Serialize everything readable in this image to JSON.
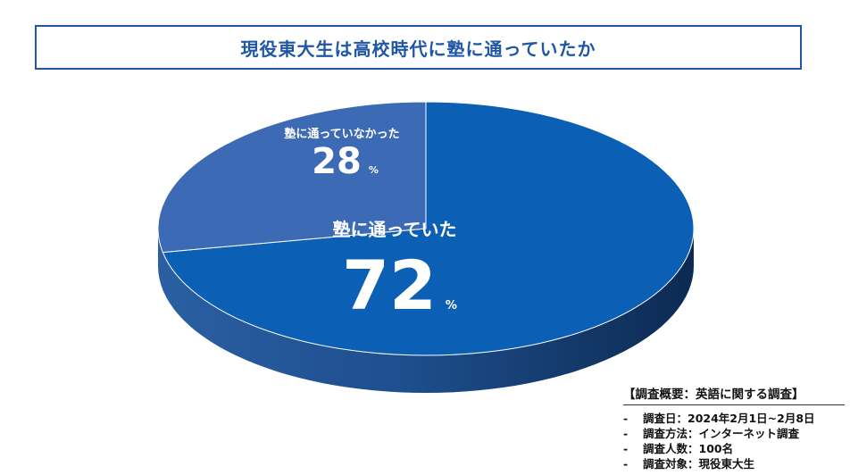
{
  "title": "現役東大生は高校時代に塾に通っていたか",
  "chart_data": {
    "type": "pie",
    "title": "現役東大生は高校時代に塾に通っていたか",
    "slices": [
      {
        "label": "塾に通っていた",
        "value": 72,
        "unit": "%",
        "color": "#0b5fb5"
      },
      {
        "label": "塾に通っていなかった",
        "value": 28,
        "unit": "%",
        "color": "#3d6ab5"
      }
    ]
  },
  "notes": {
    "heading": "【調査概要：英語に関する調査】",
    "items": [
      {
        "bullet": "-",
        "text": "調査日：2024年2月1日~2月8日"
      },
      {
        "bullet": "-",
        "text": "調査方法：インターネット調査"
      },
      {
        "bullet": "-",
        "text": "調査人数：100名"
      },
      {
        "bullet": "-",
        "text": "調査対象：現役東大生"
      }
    ]
  }
}
